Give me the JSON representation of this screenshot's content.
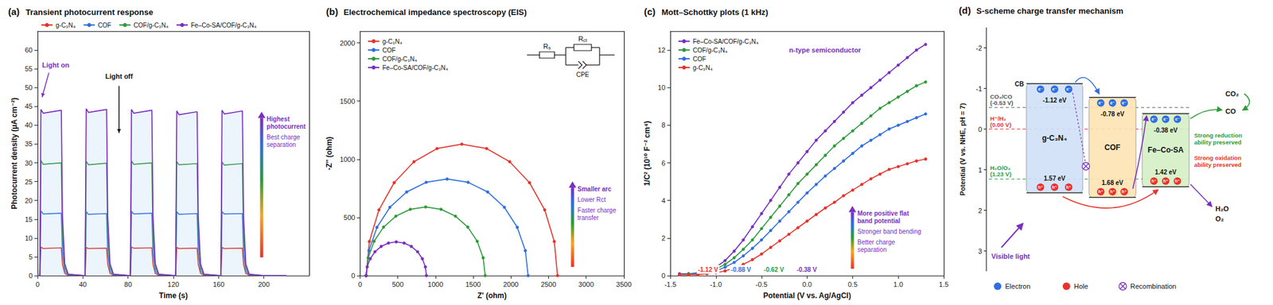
{
  "chart_data": [
    {
      "panel_label": "(a)",
      "type": "line",
      "title": "Transient photocurrent response",
      "x_label": "Time (s)",
      "y_label": "Photocurrent density (μA cm⁻²)",
      "x": [
        0,
        2,
        3,
        5,
        21,
        22,
        24,
        27,
        42,
        43,
        45,
        61,
        62,
        64,
        67,
        82,
        83,
        85,
        101,
        102,
        104,
        107,
        122,
        123,
        125,
        141,
        142,
        144,
        147,
        162,
        163,
        165,
        181,
        182,
        184,
        187,
        200,
        220
      ],
      "series": [
        {
          "name": "g-C₃N₄",
          "color": "#e8332a",
          "values": [
            0,
            0,
            7.6,
            7.2,
            7.4,
            3.0,
            0.6,
            0.1,
            0,
            7.5,
            7.2,
            7.3,
            3.0,
            0.6,
            0.1,
            0,
            7.6,
            7.3,
            7.4,
            3.0,
            0.6,
            0.1,
            0,
            7.5,
            7.2,
            7.3,
            3.0,
            0.6,
            0.1,
            0,
            7.5,
            7.2,
            7.3,
            3.0,
            0.6,
            0.1,
            0,
            0
          ]
        },
        {
          "name": "COF",
          "color": "#2f6fe0",
          "values": [
            0,
            0,
            17.2,
            16.4,
            16.6,
            6.2,
            1.2,
            0.2,
            0,
            17.0,
            16.3,
            16.5,
            6.1,
            1.2,
            0.2,
            0,
            17.1,
            16.4,
            16.6,
            6.2,
            1.2,
            0.2,
            0,
            17.0,
            16.3,
            16.5,
            6.1,
            1.2,
            0.2,
            0,
            17.0,
            16.4,
            16.5,
            6.1,
            1.2,
            0.2,
            0,
            0
          ]
        },
        {
          "name": "COF/g-C₃N₄",
          "color": "#2e9b3a",
          "values": [
            0,
            0,
            30.6,
            29.6,
            30.0,
            11.0,
            2.2,
            0.3,
            0,
            30.4,
            29.5,
            29.9,
            11.0,
            2.2,
            0.3,
            0,
            30.5,
            29.6,
            30.0,
            11.0,
            2.2,
            0.3,
            0,
            30.3,
            29.5,
            29.8,
            10.9,
            2.2,
            0.3,
            0,
            30.2,
            29.4,
            29.8,
            10.9,
            2.2,
            0.3,
            0,
            0
          ]
        },
        {
          "name": "Fe–Co-SA/COF/g-C₃N₄",
          "color": "#7a2fc0",
          "values": [
            0,
            0,
            44.2,
            43.2,
            44.0,
            16.0,
            3.2,
            0.4,
            0,
            44.4,
            43.4,
            44.2,
            16.0,
            3.2,
            0.4,
            0,
            44.2,
            43.2,
            44.0,
            16.0,
            3.2,
            0.4,
            0,
            43.8,
            42.8,
            43.6,
            15.8,
            3.1,
            0.4,
            0,
            44.0,
            43.0,
            43.8,
            15.9,
            3.1,
            0.4,
            0,
            0
          ]
        }
      ],
      "xlim": [
        0,
        240
      ],
      "xticks": [
        0,
        40,
        80,
        120,
        160,
        200
      ],
      "ylim": [
        0,
        65
      ],
      "yticks": [
        0,
        5,
        10,
        15,
        20,
        25,
        30,
        35,
        40,
        45,
        50,
        55,
        60
      ],
      "grid": false,
      "legend": "top",
      "marker": "none",
      "annotations": {
        "light_on": "Light on",
        "light_off": "Light off",
        "trend": [
          "Highest photocurrent",
          "Best charge separation"
        ]
      }
    },
    {
      "panel_label": "(b)",
      "type": "line",
      "title": "Electrochemical impedance spectroscopy (EIS)",
      "x_label": "Z' (ohm)",
      "y_label": "-Z'' (ohm)",
      "series": [
        {
          "name": "g-C₃N₄",
          "color": "#e8332a",
          "x": [
            80,
            123,
            250,
            452,
            715,
            1021,
            1350,
            1679,
            1985,
            2248,
            2450,
            2577,
            2620
          ],
          "values": [
            0,
            293,
            565,
            799,
            979,
            1092,
            1130,
            1092,
            979,
            799,
            565,
            293,
            0
          ]
        },
        {
          "name": "COF",
          "color": "#2f6fe0",
          "x": [
            80,
            117,
            224,
            395,
            618,
            877,
            1155,
            1433,
            1693,
            1915,
            2086,
            2193,
            2230
          ],
          "values": [
            0,
            215,
            415,
            587,
            719,
            802,
            830,
            802,
            719,
            587,
            415,
            215,
            0
          ]
        },
        {
          "name": "COF/g-C₃N₄",
          "color": "#2e9b3a",
          "x": [
            80,
            107,
            186,
            311,
            475,
            666,
            870,
            1074,
            1265,
            1429,
            1554,
            1633,
            1660
          ],
          "values": [
            0,
            153,
            295,
            417,
            511,
            570,
            590,
            570,
            511,
            417,
            295,
            153,
            0
          ]
        },
        {
          "name": "Fe–Co-SA/COF/g-C₃N₄",
          "color": "#7a2fc0",
          "x": [
            80,
            94,
            134,
            197,
            280,
            376,
            480,
            584,
            680,
            763,
            826,
            866,
            880
          ],
          "values": [
            0,
            75,
            145,
            205,
            251,
            280,
            290,
            280,
            251,
            205,
            145,
            75,
            0
          ]
        }
      ],
      "xlim": [
        0,
        3500
      ],
      "xticks": [
        0,
        500,
        1000,
        1500,
        2000,
        2500,
        3000,
        3500
      ],
      "ylim": [
        0,
        2100
      ],
      "yticks": [
        0,
        500,
        1000,
        1500,
        2000
      ],
      "grid": false,
      "legend": "top-left",
      "marker": "circle",
      "circuit": [
        "Rs",
        "Rct",
        "CPE"
      ],
      "annotations": {
        "trend": [
          "Smaller arc",
          "Lower Rct",
          "Faster charge transfer"
        ]
      }
    },
    {
      "panel_label": "(c)",
      "type": "line",
      "title": "Mott–Schottky plots (1 kHz)",
      "x_label": "Potential (V vs. Ag/AgCl)",
      "y_label": "1/C² (10¹⁰ F⁻² cm⁴)",
      "x": [
        -1.4,
        -1.3,
        -1.2,
        -1.1,
        -1.0,
        -0.9,
        -0.8,
        -0.7,
        -0.6,
        -0.5,
        -0.4,
        -0.3,
        -0.2,
        -0.1,
        0,
        0.1,
        0.2,
        0.3,
        0.4,
        0.5,
        0.6,
        0.7,
        0.8,
        0.9,
        1.0,
        1.1,
        1.2,
        1.3
      ],
      "series": [
        {
          "name": "Fe–Co-SA/COF/g-C₃N₄",
          "color": "#7a2fc0",
          "flat_band_label": "-0.38 V",
          "values": [
            0.1,
            0.1,
            0.15,
            0.25,
            0.45,
            0.8,
            1.3,
            1.9,
            2.6,
            3.3,
            4.0,
            4.7,
            5.4,
            6.0,
            6.6,
            7.2,
            7.7,
            8.2,
            8.7,
            9.2,
            9.6,
            10.0,
            10.4,
            10.8,
            11.2,
            11.6,
            12.0,
            12.3
          ]
        },
        {
          "name": "COF/g-C₃N₄",
          "color": "#2e9b3a",
          "flat_band_label": "-0.62 V",
          "values": [
            0.05,
            0.1,
            0.1,
            0.2,
            0.35,
            0.6,
            0.95,
            1.4,
            1.9,
            2.5,
            3.1,
            3.7,
            4.3,
            4.9,
            5.4,
            5.9,
            6.4,
            6.9,
            7.3,
            7.7,
            8.1,
            8.5,
            8.9,
            9.2,
            9.5,
            9.8,
            10.1,
            10.3
          ]
        },
        {
          "name": "COF",
          "color": "#2f6fe0",
          "flat_band_label": "-0.88 V",
          "values": [
            0.05,
            0.05,
            0.1,
            0.15,
            0.25,
            0.45,
            0.7,
            1.05,
            1.45,
            1.9,
            2.4,
            2.9,
            3.4,
            3.9,
            4.4,
            4.85,
            5.3,
            5.7,
            6.1,
            6.5,
            6.9,
            7.2,
            7.5,
            7.8,
            8.0,
            8.2,
            8.4,
            8.6
          ]
        },
        {
          "name": "g-C₃N₄",
          "color": "#e8332a",
          "flat_band_label": "-1.12 V",
          "values": [
            0.05,
            0.05,
            0.05,
            0.1,
            0.15,
            0.25,
            0.4,
            0.6,
            0.85,
            1.15,
            1.5,
            1.85,
            2.2,
            2.55,
            2.9,
            3.25,
            3.6,
            3.9,
            4.25,
            4.55,
            4.85,
            5.15,
            5.4,
            5.65,
            5.8,
            5.95,
            6.1,
            6.2
          ]
        }
      ],
      "xlim": [
        -1.5,
        1.5
      ],
      "xticks": [
        -1.5,
        {
          "value": -1,
          "label": "-1.0"
        },
        -0.5,
        {
          "value": 0,
          "label": "0.0"
        },
        0.5,
        {
          "value": 1,
          "label": "1.0"
        },
        1.5
      ],
      "ylim": [
        0,
        13
      ],
      "yticks": [
        0,
        2,
        4,
        6,
        8,
        10,
        12
      ],
      "grid": false,
      "legend": "top-left",
      "marker": "circle",
      "annotations": {
        "note": "n-type semiconductor",
        "trend": [
          "More positive flat band potential",
          "Stronger band bending",
          "Better charge separation"
        ]
      }
    }
  ],
  "diagram": {
    "panel_label": "(d)",
    "title": "S-scheme charge transfer mechanism",
    "y_label": "Potential (V vs. NHE, pH = 7)",
    "ylim": [
      -2.5,
      3.5
    ],
    "yticks": [
      -2,
      -1,
      0,
      1,
      2,
      3
    ],
    "references": [
      {
        "label": "CO₂/CO",
        "potential": -0.53,
        "potential_label": "(-0.53 V)",
        "color": "#555555"
      },
      {
        "label": "H⁺/H₂",
        "potential": 0,
        "potential_label": "(0.00 V)",
        "color": "#e8332a"
      },
      {
        "label": "H₂O/O₂",
        "potential": 1.23,
        "potential_label": "(1.23 V)",
        "color": "#2e9b3a"
      }
    ],
    "band_edge_label": "CB",
    "components": [
      {
        "name": "g-C₃N₄",
        "cb": -1.12,
        "cb_label": "-1.12 eV",
        "vb": 1.57,
        "vb_label": "1.57 eV",
        "color": "#cfe0f7"
      },
      {
        "name": "COF",
        "cb": -0.78,
        "cb_label": "-0.78 eV",
        "vb": 1.68,
        "vb_label": "1.68 eV",
        "color": "#fde3b3"
      },
      {
        "name": "Fe–Co-SA",
        "cb": -0.38,
        "cb_label": "-0.38 eV",
        "vb": 1.42,
        "vb_label": "1.42 eV",
        "color": "#d5efc4"
      }
    ],
    "electron_symbol": "e⁻",
    "hole_symbol": "h⁺",
    "light": "Visible light",
    "reduction": {
      "reactant": "CO₂",
      "product": "CO",
      "note": "Strong reduction ability preserved"
    },
    "oxidation": {
      "reactant": "H₂O",
      "product": "O₂",
      "note": "Strong oxidation ability preserved"
    },
    "key_items": [
      "Electron",
      "Hole",
      "Recombination"
    ]
  }
}
